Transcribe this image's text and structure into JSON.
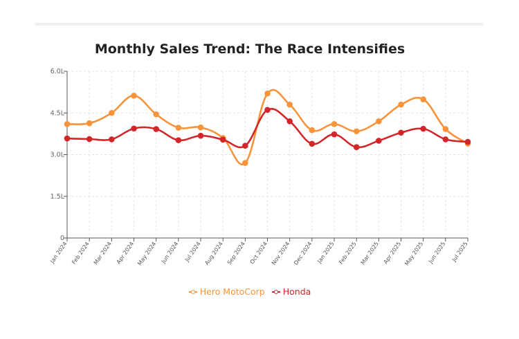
{
  "colors": {
    "hero": "#F7943B",
    "honda": "#D1262A",
    "grid": "#e3e3e3",
    "axis": "#555555"
  },
  "chart_data": {
    "type": "line",
    "title": "Monthly Sales Trend: The Race Intensifies",
    "categories": [
      "Jan 2024",
      "Feb 2024",
      "Mar 2024",
      "Apr 2024",
      "May 2024",
      "Jun 2024",
      "Jul 2024",
      "Aug 2024",
      "Sep 2024",
      "Oct 2024",
      "Nov 2024",
      "Dec 2024",
      "Jan 2025",
      "Feb 2025",
      "Mar 2025",
      "Apr 2025",
      "May 2025",
      "Jun 2025",
      "Jul 2025"
    ],
    "series": [
      {
        "name": "Hero MotoCorp",
        "color": "#F7943B",
        "values": [
          4.1,
          4.13,
          4.5,
          5.12,
          4.45,
          3.97,
          3.98,
          3.6,
          2.7,
          5.2,
          4.8,
          3.88,
          4.1,
          3.84,
          4.2,
          4.8,
          4.99,
          3.92,
          3.4
        ]
      },
      {
        "name": "Honda",
        "color": "#D1262A",
        "values": [
          3.58,
          3.56,
          3.55,
          3.94,
          3.92,
          3.52,
          3.68,
          3.54,
          3.32,
          4.61,
          4.2,
          3.39,
          3.73,
          3.27,
          3.5,
          3.79,
          3.93,
          3.55,
          3.46
        ]
      }
    ],
    "yticks": [
      "0",
      "1.5L",
      "3.0L",
      "4.5L",
      "6.0L"
    ],
    "ytick_values": [
      0,
      1.5,
      3.0,
      4.5,
      6.0
    ],
    "ylim": [
      0,
      6.0
    ],
    "xlabel": "",
    "ylabel": "",
    "grid": true,
    "legend": "bottom"
  }
}
